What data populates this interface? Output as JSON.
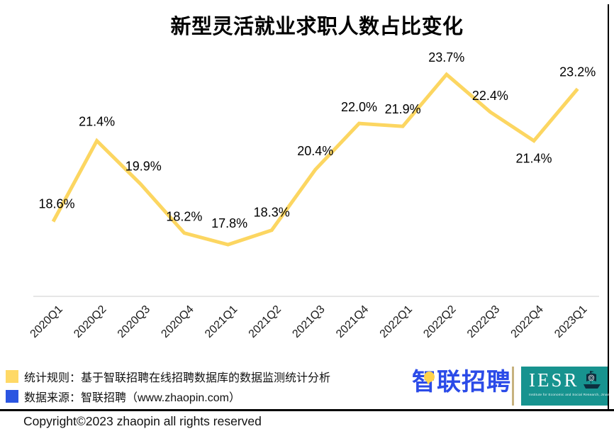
{
  "title": "新型灵活就业求职人数占比变化",
  "chart_data": {
    "type": "line",
    "title": "新型灵活就业求职人数占比变化",
    "categories": [
      "2020Q1",
      "2020Q2",
      "2020Q3",
      "2020Q4",
      "2021Q1",
      "2021Q2",
      "2021Q3",
      "2021Q4",
      "2022Q1",
      "2022Q2",
      "2022Q3",
      "2022Q4",
      "2023Q1"
    ],
    "values": [
      18.6,
      21.4,
      19.9,
      18.2,
      17.8,
      18.3,
      20.4,
      22.0,
      21.9,
      23.7,
      22.4,
      21.4,
      23.2
    ],
    "value_suffix": "%",
    "xlabel": "",
    "ylabel": "",
    "ylim": [
      17.0,
      25.0
    ],
    "grid": false,
    "legend_position": "none",
    "line_color": "#FCD661",
    "axis_color": "#D6D6D6",
    "label_color": "#000000",
    "label_dx": [
      5,
      0,
      4,
      0,
      2,
      0,
      0,
      0,
      0,
      0,
      0,
      0,
      0
    ],
    "label_dy": [
      -19,
      -21,
      -19,
      -17,
      -24,
      -19,
      -20,
      -17,
      -18,
      -18,
      -17,
      31,
      -18
    ]
  },
  "footer": {
    "legend": [
      {
        "color": "#FFD966",
        "text": "统计规则：基于智联招聘在线招聘数据库的数据监测统计分析"
      },
      {
        "color": "#2B55E1",
        "text": "数据来源：智联招聘（www.zhaopin.com）"
      }
    ],
    "zhaopin_logo_text": "智联招聘",
    "iesr_acronym": "IESR",
    "iesr_subtext": "Institute for Economic and Social Research, Jinan University",
    "copyright": "Copyright©2023 zhaopin all rights reserved"
  },
  "colors": {
    "line": "#FCD661",
    "legend_yellow": "#FFD966",
    "legend_blue": "#2B55E1",
    "zhaopin_blue": "#2B4BE8",
    "iesr_teal": "#17938F",
    "divider_tan": "#C7B27E"
  }
}
